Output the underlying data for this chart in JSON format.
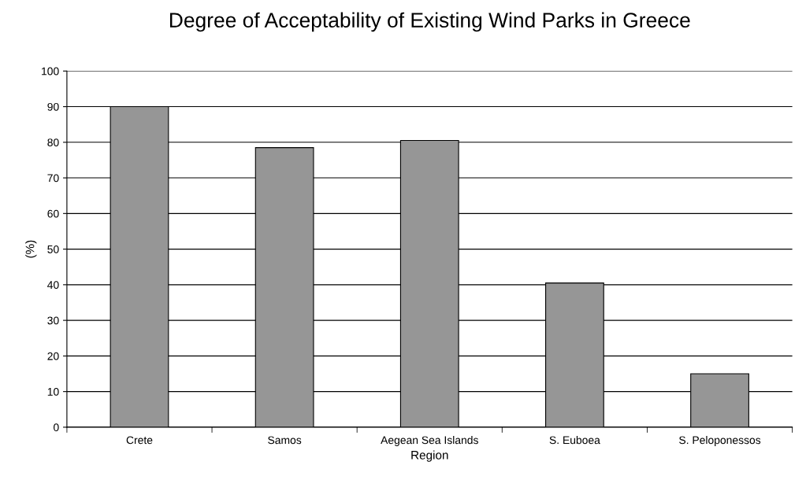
{
  "chart_data": {
    "type": "bar",
    "title": "Degree of Acceptability of Existing Wind Parks in Greece",
    "xlabel": "Region",
    "ylabel": "(%)",
    "categories": [
      "Crete",
      "Samos",
      "Aegean Sea Islands",
      "S. Euboea",
      "S. Peloponessos"
    ],
    "values": [
      90,
      78.5,
      80.5,
      40.5,
      15
    ],
    "color": "#969696",
    "ylim": [
      0,
      100
    ],
    "yticks": [
      0,
      10,
      20,
      30,
      40,
      50,
      60,
      70,
      80,
      90,
      100
    ],
    "grid": "y"
  }
}
